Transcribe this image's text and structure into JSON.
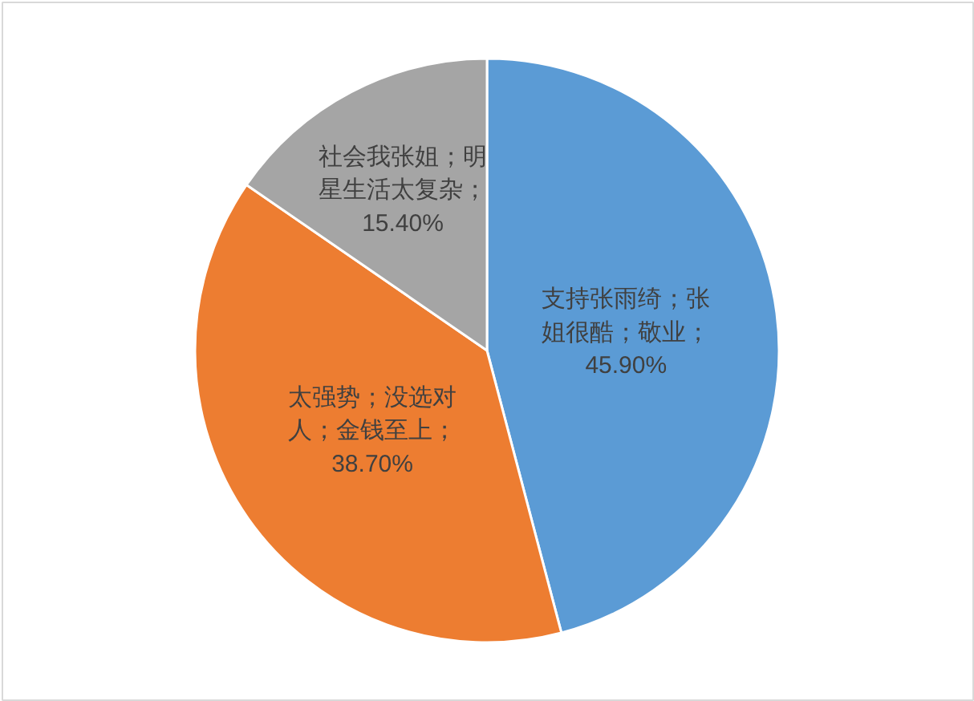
{
  "chart_data": {
    "type": "pie",
    "categories": [
      "支持张雨绮；张姐很酷；敬业",
      "太强势；没选对人；金钱至上",
      "社会我张姐；明星生活太复杂"
    ],
    "values": [
      45.9,
      38.7,
      15.4
    ],
    "colors": [
      "#5b9bd5",
      "#ed7d31",
      "#a5a5a5"
    ],
    "value_labels": [
      "；45.90%",
      "；38.70%",
      "；15.40%"
    ]
  }
}
